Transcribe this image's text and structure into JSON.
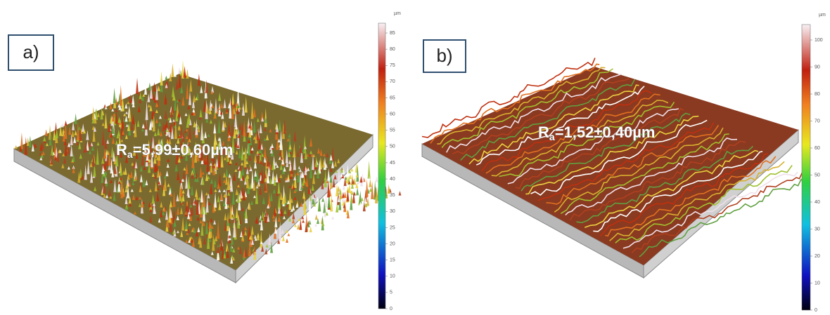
{
  "panels": [
    {
      "label": "a)",
      "roughness": {
        "symbol": "R",
        "subscript": "a",
        "text": "=5,99±0,60µm"
      },
      "colorbar": {
        "unit": "µm",
        "ticks": [
          0,
          5,
          10,
          15,
          20,
          25,
          30,
          35,
          40,
          45,
          50,
          55,
          60,
          65,
          70,
          75,
          80,
          85
        ]
      }
    },
    {
      "label": "b)",
      "roughness": {
        "symbol": "R",
        "subscript": "a",
        "text": "=1,52±0,40µm"
      },
      "colorbar": {
        "unit": "µm",
        "ticks": [
          0,
          10,
          20,
          30,
          40,
          50,
          60,
          70,
          80,
          90,
          100
        ]
      }
    }
  ]
}
